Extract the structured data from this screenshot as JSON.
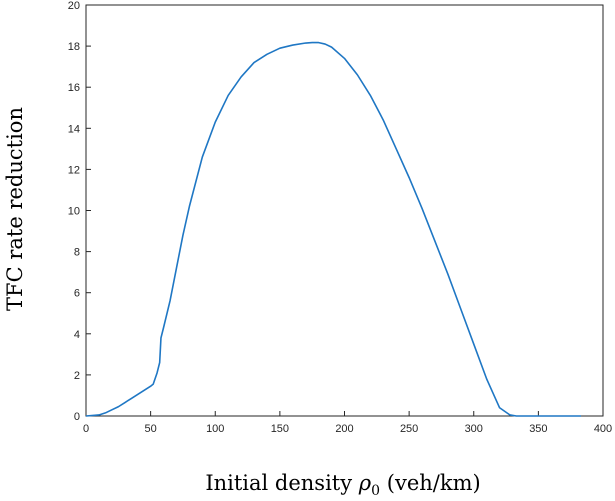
{
  "chart_data": {
    "type": "line",
    "title": "",
    "xlabel": "Initial density",
    "xlabel_symbol": "ρ",
    "xlabel_subscript": "0",
    "xlabel_unit": "(veh/km)",
    "ylabel": "TFC rate reduction",
    "xlim": [
      0,
      400
    ],
    "ylim": [
      0,
      20
    ],
    "xticks": [
      "0",
      "50",
      "100",
      "150",
      "200",
      "250",
      "300",
      "350",
      "400"
    ],
    "yticks": [
      "0",
      "2",
      "4",
      "6",
      "8",
      "10",
      "12",
      "14",
      "16",
      "18",
      "20"
    ],
    "grid": false,
    "series": [
      {
        "color": "#1f77c4",
        "x": [
          0,
          10,
          15,
          20,
          25,
          30,
          35,
          40,
          45,
          50,
          52,
          55,
          57,
          58,
          60,
          65,
          70,
          75,
          80,
          90,
          100,
          110,
          120,
          130,
          140,
          150,
          160,
          170,
          175,
          180,
          185,
          190,
          200,
          210,
          220,
          230,
          240,
          250,
          260,
          270,
          280,
          290,
          300,
          310,
          320,
          328,
          333,
          340,
          360,
          383
        ],
        "y": [
          0,
          0.05,
          0.15,
          0.3,
          0.45,
          0.65,
          0.85,
          1.05,
          1.25,
          1.45,
          1.55,
          2.1,
          2.6,
          3.8,
          4.3,
          5.6,
          7.2,
          8.8,
          10.2,
          12.6,
          14.3,
          15.6,
          16.5,
          17.2,
          17.6,
          17.9,
          18.05,
          18.15,
          18.17,
          18.17,
          18.1,
          17.95,
          17.4,
          16.6,
          15.6,
          14.4,
          13.0,
          11.6,
          10.1,
          8.5,
          6.9,
          5.2,
          3.5,
          1.8,
          0.4,
          0.05,
          0,
          0,
          0,
          0
        ]
      }
    ]
  }
}
